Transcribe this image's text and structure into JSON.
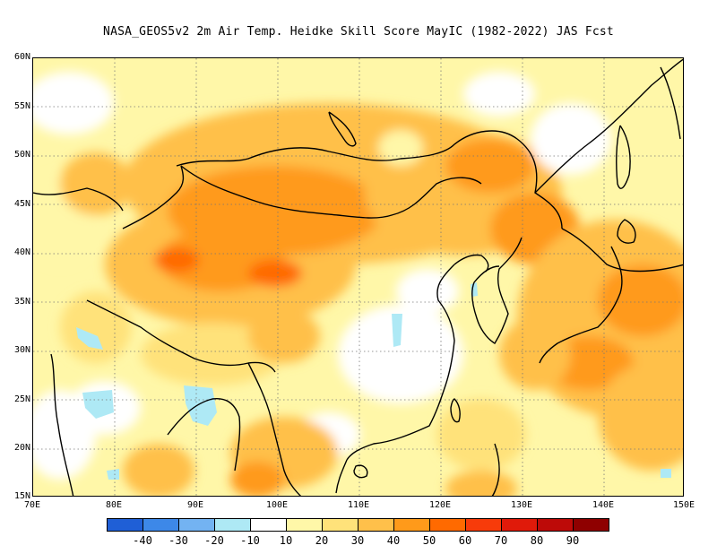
{
  "title": "NASA_GEOS5v2  2m Air Temp. Heidke Skill Score MayIC (1982-2022) JAS Fcst",
  "map": {
    "lat_labels": [
      "60N",
      "55N",
      "50N",
      "45N",
      "40N",
      "35N",
      "30N",
      "25N",
      "20N",
      "15N"
    ],
    "lon_labels": [
      "70E",
      "80E",
      "90E",
      "100E",
      "110E",
      "120E",
      "130E",
      "140E",
      "150E"
    ],
    "lat_range": [
      15,
      60
    ],
    "lon_range": [
      70,
      150
    ],
    "grid": "dotted"
  },
  "colorbar": {
    "colors": [
      "#1f5fd6",
      "#3d88e8",
      "#73b3f2",
      "#aee9f5",
      "#ffffff",
      "#fff7a8",
      "#ffe27a",
      "#ffc04a",
      "#ff9a1a",
      "#ff6a00",
      "#f73b0a",
      "#e01a0a",
      "#bd0a08",
      "#8f0000"
    ],
    "ticks": [
      "-40",
      "-30",
      "-20",
      "-10",
      "10",
      "20",
      "30",
      "40",
      "50",
      "60",
      "70",
      "80",
      "90"
    ]
  }
}
